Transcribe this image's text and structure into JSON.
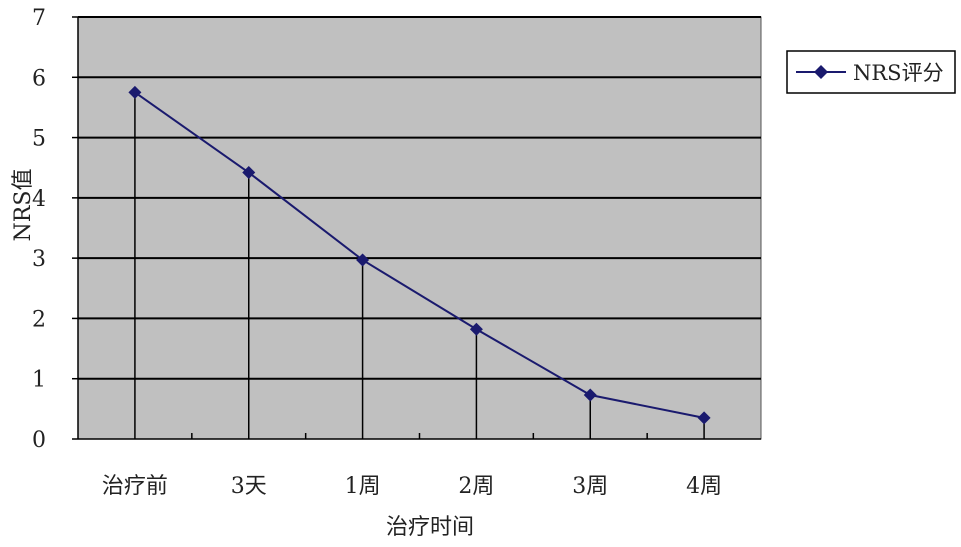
{
  "chart_data": {
    "type": "line",
    "title": "",
    "xlabel": "治疗时间",
    "ylabel": "NRS值",
    "categories": [
      "治疗前",
      "3天",
      "1周",
      "2周",
      "3周",
      "4周"
    ],
    "series": [
      {
        "name": "NRS评分",
        "values": [
          5.75,
          4.42,
          2.97,
          1.82,
          0.73,
          0.35
        ],
        "color": "#1a1a6e"
      }
    ],
    "ylim": [
      0,
      7
    ],
    "yticks": [
      0,
      1,
      2,
      3,
      4,
      5,
      6,
      7
    ],
    "grid": true,
    "drop_lines": true,
    "legend_position": "right",
    "colors": {
      "plot_background": "#c0c0c0",
      "grid": "#000000",
      "series": "#1a1a6e"
    }
  }
}
